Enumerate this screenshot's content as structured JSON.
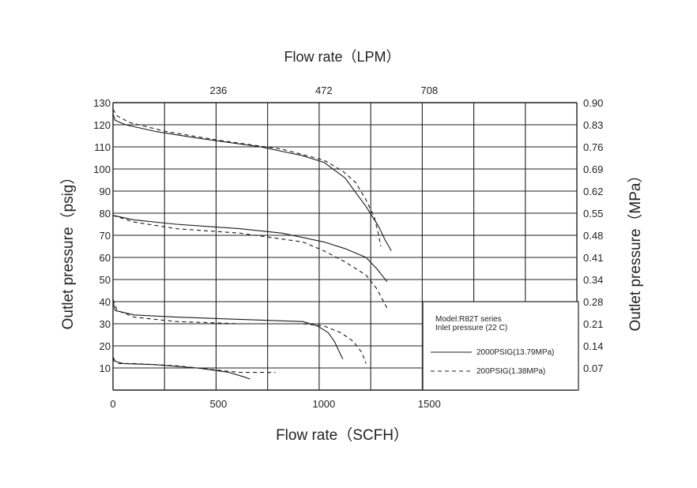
{
  "chart_data": {
    "type": "line",
    "title_top": "Flow rate（LPM）",
    "xlabel": "Flow rate（SCFH）",
    "ylabel_left": "Outlet pressure（psig）",
    "ylabel_right": "Outlet pressure（MPa）",
    "xlim": [
      0,
      2200
    ],
    "ylim": [
      0,
      130
    ],
    "x_ticks": [
      "0",
      "500",
      "1000",
      "1500"
    ],
    "x_tick_values": [
      0,
      500,
      1000,
      1500
    ],
    "top_ticks": [
      "236",
      "472",
      "708"
    ],
    "top_tick_values": [
      500,
      1000,
      1500
    ],
    "y_ticks_left": [
      "130",
      "120",
      "110",
      "100",
      "90",
      "80",
      "70",
      "60",
      "50",
      "40",
      "30",
      "20",
      "10"
    ],
    "y_ticks_right": [
      "0.90",
      "0.83",
      "0.76",
      "0.69",
      "0.62",
      "0.55",
      "0.48",
      "0.41",
      "0.34",
      "0.28",
      "0.21",
      "0.14",
      "0.07"
    ],
    "grid": true,
    "legend": {
      "model": "Model:R82T series",
      "inlet": "Inlet pressure (22 C)",
      "solid_label": "2000PSIG(13.79MPa)",
      "dashed_label": "200PSIG(1.38MPa)"
    },
    "series": [
      {
        "style": "solid",
        "x": [
          0,
          10,
          60,
          200,
          400,
          700,
          900,
          1000,
          1100,
          1200,
          1260,
          1290,
          1320
        ],
        "y": [
          125,
          122,
          120,
          117,
          114,
          110,
          106,
          103,
          96,
          83,
          74,
          68,
          63
        ]
      },
      {
        "style": "dashed",
        "x": [
          0,
          20,
          80,
          250,
          500,
          800,
          1000,
          1090,
          1150,
          1200,
          1240,
          1260,
          1270
        ],
        "y": [
          127,
          124,
          121,
          117,
          113,
          109,
          104,
          99,
          94,
          86,
          78,
          70,
          65
        ]
      },
      {
        "style": "solid",
        "x": [
          0,
          100,
          300,
          600,
          800,
          1000,
          1100,
          1200,
          1250,
          1300
        ],
        "y": [
          79,
          77,
          75,
          73,
          71,
          67,
          64,
          60,
          55,
          49
        ]
      },
      {
        "style": "dashed",
        "x": [
          0,
          100,
          300,
          600,
          900,
          1000,
          1100,
          1200,
          1250,
          1300
        ],
        "y": [
          79,
          76,
          73,
          71,
          67,
          63,
          58,
          52,
          46,
          37
        ]
      },
      {
        "style": "solid",
        "x": [
          0,
          10,
          100,
          300,
          600,
          900,
          970,
          1020,
          1050,
          1070,
          1090
        ],
        "y": [
          40,
          36,
          34,
          33,
          32,
          31,
          29,
          26,
          22,
          18,
          14
        ]
      },
      {
        "style": "dashed",
        "x": [
          0,
          20,
          100,
          300,
          600,
          900,
          1000,
          1080,
          1140,
          1180,
          1200
        ],
        "y": [
          41,
          36,
          33,
          31,
          30,
          30,
          29,
          26,
          22,
          17,
          12
        ]
      },
      {
        "style": "solid",
        "x": [
          0,
          10,
          50,
          200,
          400,
          550,
          620,
          650
        ],
        "y": [
          15,
          13,
          12,
          11.5,
          10,
          8,
          6,
          5
        ]
      },
      {
        "style": "dashed",
        "x": [
          0,
          20,
          100,
          300,
          500,
          600,
          700,
          770
        ],
        "y": [
          14,
          12,
          12,
          11,
          9,
          8,
          8,
          8
        ]
      }
    ]
  }
}
